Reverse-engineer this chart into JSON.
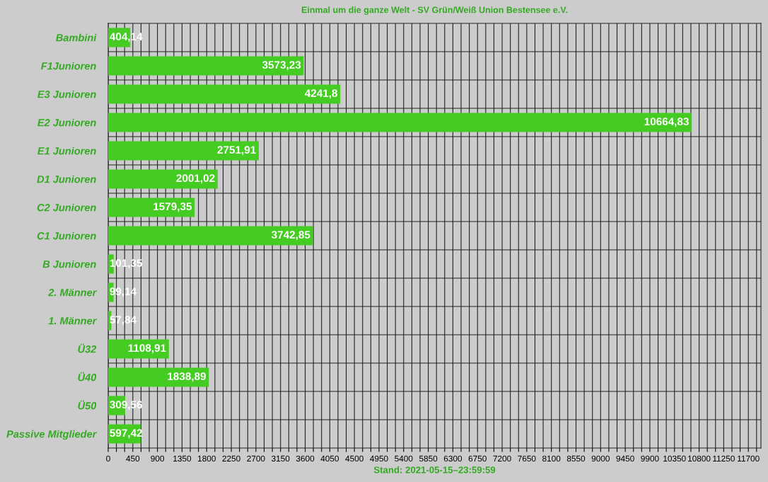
{
  "chart_data": {
    "type": "bar",
    "orientation": "horizontal",
    "title": "Einmal um die ganze Welt - SV Grün/Weiß Union Bestensee e.V.",
    "categories": [
      "Bambini",
      "F1Junioren",
      "E3 Junioren",
      "E2 Junioren",
      "E1 Junioren",
      "D1 Junioren",
      "C2 Junioren",
      "C1 Junioren",
      "B Junioren",
      "2. Männer",
      "1. Männer",
      "Ü32",
      "Ü40",
      "Ü50",
      "Passive Mitglieder"
    ],
    "values": [
      404.14,
      3573.23,
      4241.8,
      10664.83,
      2751.91,
      2001.02,
      1579.35,
      3742.85,
      101.35,
      99.14,
      57.84,
      1108.91,
      1838.89,
      309.56,
      597.42
    ],
    "value_labels": [
      "404,14",
      "3573,23",
      "4241,8",
      "10664,83",
      "2751,91",
      "2001,02",
      "1579,35",
      "3742,85",
      "101,35",
      "99,14",
      "57,84",
      "1108,91",
      "1838,89",
      "309,56",
      "597,42"
    ],
    "color": "#44cc22",
    "xlim": [
      0,
      11930
    ],
    "xticks": [
      0,
      {
        "value": 150,
        "label": null
      },
      {
        "value": 300,
        "label": null
      },
      450,
      {
        "value": 600,
        "label": null
      },
      {
        "value": 750,
        "label": null
      },
      900,
      {
        "value": 1050,
        "label": null
      },
      {
        "value": 1200,
        "label": null
      },
      1350,
      {
        "value": 1500,
        "label": null
      },
      {
        "value": 1650,
        "label": null
      },
      1800,
      {
        "value": 1950,
        "label": null
      },
      {
        "value": 2100,
        "label": null
      },
      2250,
      {
        "value": 2400,
        "label": null
      },
      {
        "value": 2550,
        "label": null
      },
      2700,
      {
        "value": 2850,
        "label": null
      },
      {
        "value": 3000,
        "label": null
      },
      3150,
      {
        "value": 3300,
        "label": null
      },
      {
        "value": 3450,
        "label": null
      },
      3600,
      {
        "value": 3750,
        "label": null
      },
      {
        "value": 3900,
        "label": null
      },
      4050,
      {
        "value": 4200,
        "label": null
      },
      {
        "value": 4350,
        "label": null
      },
      4500,
      {
        "value": 4650,
        "label": null
      },
      {
        "value": 4800,
        "label": null
      },
      4950,
      {
        "value": 5100,
        "label": null
      },
      {
        "value": 5250,
        "label": null
      },
      5400,
      {
        "value": 5550,
        "label": null
      },
      {
        "value": 5700,
        "label": null
      },
      5850,
      {
        "value": 6000,
        "label": null
      },
      {
        "value": 6150,
        "label": null
      },
      6300,
      {
        "value": 6450,
        "label": null
      },
      {
        "value": 6600,
        "label": null
      },
      6750,
      {
        "value": 6900,
        "label": null
      },
      {
        "value": 7050,
        "label": null
      },
      7200,
      {
        "value": 7350,
        "label": null
      },
      {
        "value": 7500,
        "label": null
      },
      7650,
      {
        "value": 7800,
        "label": null
      },
      {
        "value": 7950,
        "label": null
      },
      8100,
      {
        "value": 8250,
        "label": null
      },
      {
        "value": 8400,
        "label": null
      },
      8550,
      {
        "value": 8700,
        "label": null
      },
      {
        "value": 8850,
        "label": null
      },
      9000,
      {
        "value": 9150,
        "label": null
      },
      {
        "value": 9300,
        "label": null
      },
      9450,
      {
        "value": 9600,
        "label": null
      },
      {
        "value": 9750,
        "label": null
      },
      9900,
      {
        "value": 10050,
        "label": null
      },
      {
        "value": 10200,
        "label": null
      },
      10350,
      {
        "value": 10500,
        "label": null
      },
      {
        "value": 10650,
        "label": null
      },
      10800,
      {
        "value": 10950,
        "label": null
      },
      {
        "value": 11100,
        "label": null
      },
      11250,
      {
        "value": 11400,
        "label": null
      },
      {
        "value": 11550,
        "label": null
      },
      11700,
      {
        "value": 11850,
        "label": null
      }
    ],
    "grid": true,
    "annotations": [
      "Stand: 2021-05-15–23:59:59"
    ]
  }
}
